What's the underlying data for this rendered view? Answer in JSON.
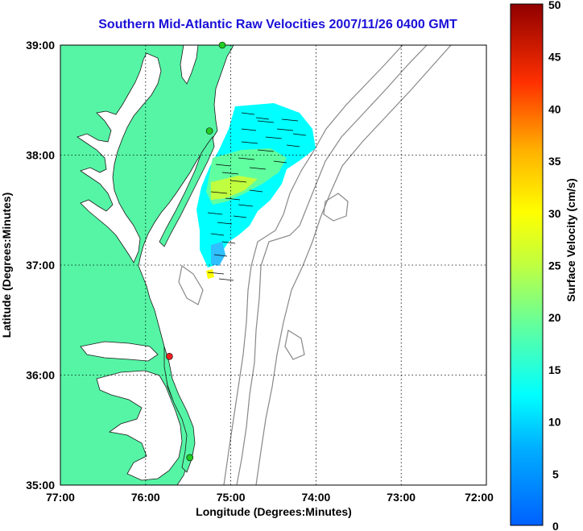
{
  "title": "Southern Mid-Atlantic Raw Velocities 2007/11/26 0400 GMT",
  "colors": {
    "land": "#55f5a5",
    "title": "#1a10d8",
    "grid": "#000000",
    "bathymetry": "#888888",
    "station_green": "#22cc22",
    "station_red": "#ee2020"
  },
  "map": {
    "x_label": "Longitude (Degrees:Minutes)",
    "y_label": "Latitude (Degrees:Minutes)",
    "x_ticks": [
      "77:00",
      "76:00",
      "75:00",
      "74:00",
      "73:00",
      "72:00"
    ],
    "y_ticks": [
      "39:00",
      "38:00",
      "37:00",
      "36:00",
      "35:00"
    ],
    "lon_range": [
      -77,
      -72
    ],
    "lat_range": [
      35,
      39
    ],
    "stations": [
      {
        "lon": -75.1,
        "lat": 39.0,
        "color": "green"
      },
      {
        "lon": -75.25,
        "lat": 38.22,
        "color": "green"
      },
      {
        "lon": -75.72,
        "lat": 36.17,
        "color": "red"
      },
      {
        "lon": -75.48,
        "lat": 35.25,
        "color": "green"
      }
    ]
  },
  "colorbar": {
    "label": "Surface Velocity (cm/s)",
    "ticks": [
      "50",
      "45",
      "40",
      "35",
      "30",
      "25",
      "20",
      "15",
      "10",
      "5",
      "0"
    ],
    "range": [
      0,
      50
    ]
  }
}
